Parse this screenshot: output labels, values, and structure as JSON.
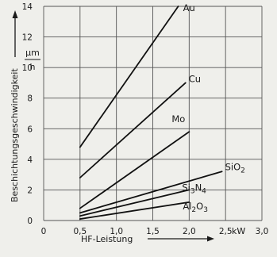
{
  "chart_data": {
    "type": "line",
    "title": "",
    "xlabel": "HF-Leistung",
    "xunit": "kW",
    "ylabel": "Beschichtungsgeschwindigkeit",
    "yunit_num": "μm",
    "yunit_den": "h",
    "xlim": [
      0,
      3.0
    ],
    "ylim": [
      0,
      14
    ],
    "xticks": [
      0,
      0.5,
      1.0,
      1.5,
      2.0,
      2.5,
      3.0
    ],
    "xtick_labels": [
      "0",
      "0,5",
      "1,0",
      "1,5",
      "2,0",
      "2,5",
      "3,0"
    ],
    "yticks": [
      0,
      2,
      4,
      6,
      8,
      10,
      12,
      14
    ],
    "ytick_labels": [
      "0",
      "2",
      "4",
      "6",
      "8",
      "10",
      "12",
      "14"
    ],
    "grid": true,
    "legend": "none",
    "series": [
      {
        "name": "Au",
        "label_parts": [
          {
            "t": "Au"
          }
        ],
        "points": [
          [
            0.5,
            4.8
          ],
          [
            1.85,
            14.0
          ]
        ]
      },
      {
        "name": "Cu",
        "label_parts": [
          {
            "t": "Cu"
          }
        ],
        "points": [
          [
            0.5,
            2.8
          ],
          [
            1.95,
            9.0
          ]
        ]
      },
      {
        "name": "Mo",
        "label_parts": [
          {
            "t": "Mo"
          }
        ],
        "points": [
          [
            0.5,
            0.8
          ],
          [
            2.0,
            5.8
          ]
        ]
      },
      {
        "name": "SiO2",
        "label_parts": [
          {
            "t": "SiO"
          },
          {
            "t": "2",
            "sub": true
          }
        ],
        "points": [
          [
            0.5,
            0.5
          ],
          [
            2.45,
            3.2
          ]
        ]
      },
      {
        "name": "Si3N4",
        "label_parts": [
          {
            "t": "Si"
          },
          {
            "t": "3",
            "sub": true
          },
          {
            "t": "N"
          },
          {
            "t": "4",
            "sub": true
          }
        ],
        "points": [
          [
            0.5,
            0.3
          ],
          [
            2.0,
            2.0
          ]
        ]
      },
      {
        "name": "Al2O3",
        "label_parts": [
          {
            "t": "Al"
          },
          {
            "t": "2",
            "sub": true
          },
          {
            "t": "O"
          },
          {
            "t": "3",
            "sub": true
          }
        ],
        "points": [
          [
            0.5,
            0.1
          ],
          [
            2.0,
            1.2
          ]
        ]
      }
    ]
  }
}
